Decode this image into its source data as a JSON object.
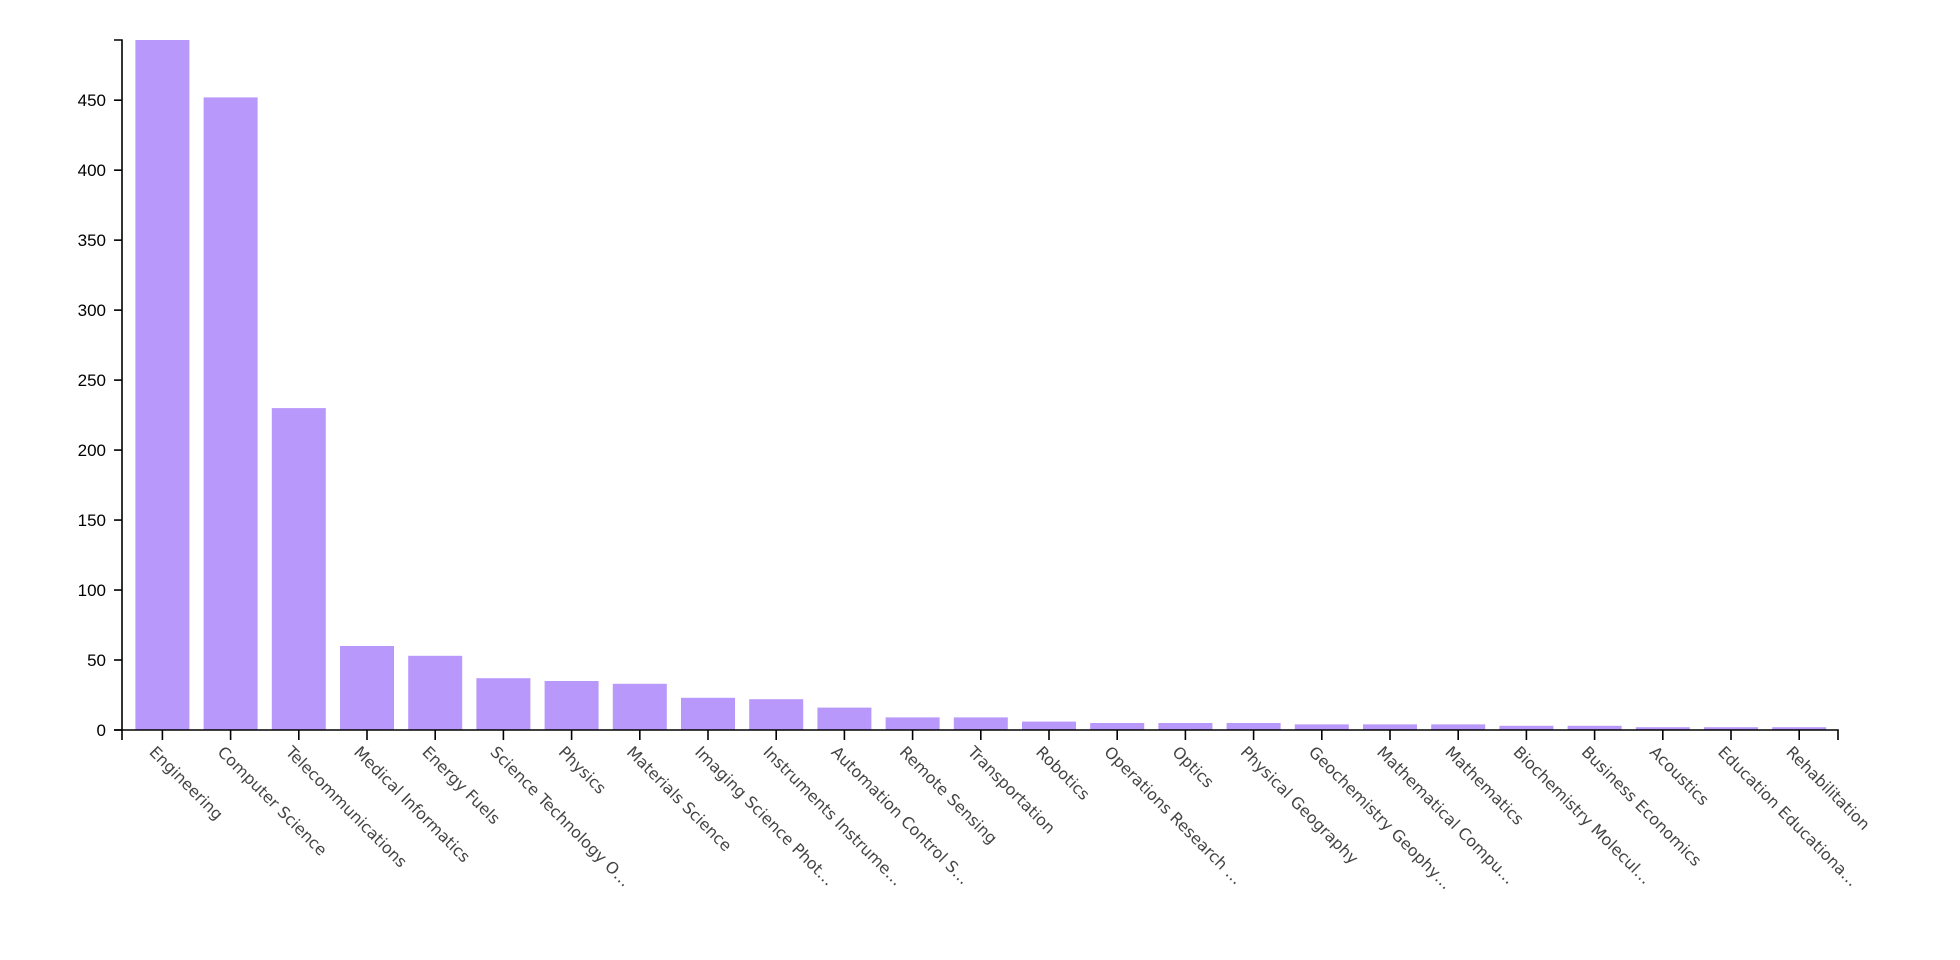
{
  "chart_data": {
    "type": "bar",
    "categories": [
      "Engineering",
      "Computer Science",
      "Telecommunications",
      "Medical Informatics",
      "Energy Fuels",
      "Science Technology O…",
      "Physics",
      "Materials Science",
      "Imaging Science Phot…",
      "Instruments Instrume…",
      "Automation Control S…",
      "Remote Sensing",
      "Transportation",
      "Robotics",
      "Operations Research …",
      "Optics",
      "Physical Geography",
      "Geochemistry Geophy…",
      "Mathematical Compu…",
      "Mathematics",
      "Biochemistry Molecul…",
      "Business Economics",
      "Acoustics",
      "Education Educationa…",
      "Rehabilitation"
    ],
    "values": [
      493,
      452,
      230,
      60,
      53,
      37,
      35,
      33,
      23,
      22,
      16,
      9,
      9,
      6,
      5,
      5,
      5,
      4,
      4,
      4,
      3,
      3,
      2,
      2,
      2
    ],
    "yticks": [
      0,
      50,
      100,
      150,
      200,
      250,
      300,
      350,
      400,
      450
    ],
    "ylim": [
      0,
      493
    ],
    "bar_color": "#b898fa",
    "grid": false,
    "legend": "none"
  }
}
